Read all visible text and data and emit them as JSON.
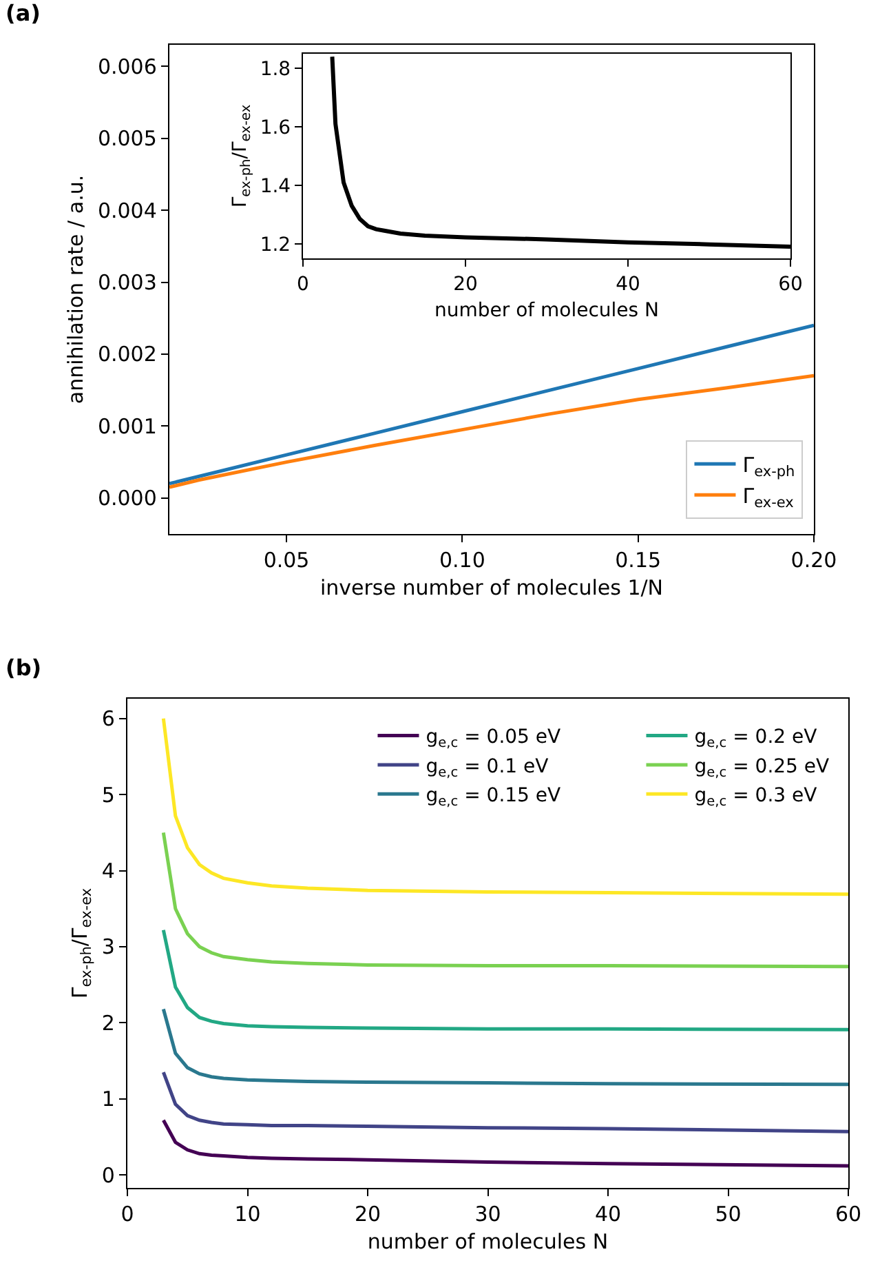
{
  "chart_data": [
    {
      "type": "line",
      "title": "(a)",
      "xlabel": "inverse number of molecules 1/N",
      "ylabel": "annihilation rate / a.u.",
      "x": [
        0.0167,
        0.025,
        0.05,
        0.075,
        0.1,
        0.125,
        0.15,
        0.175,
        0.2
      ],
      "series": [
        {
          "name": "Γ$_{ex-ph}$",
          "color": "#1f77b4",
          "values": [
            0.0002,
            0.0003,
            0.0006,
            0.0009,
            0.0012,
            0.0015,
            0.0018,
            0.0021,
            0.0024
          ]
        },
        {
          "name": "Γ$_{ex-ex}$",
          "color": "#ff7f0e",
          "values": [
            0.00015,
            0.00025,
            0.0005,
            0.00073,
            0.00095,
            0.00117,
            0.00137,
            0.00153,
            0.0017
          ]
        }
      ],
      "xlim": [
        0.0167,
        0.2
      ],
      "ylim": [
        -0.0005,
        0.0063
      ],
      "xticks": [
        0.05,
        {
          "value": 0.1,
          "label": "0.10"
        },
        0.15,
        {
          "value": 0.2,
          "label": "0.20"
        }
      ],
      "yticks": [
        {
          "value": 0,
          "label": "0.000"
        },
        0.001,
        0.002,
        0.003,
        0.004,
        0.005,
        0.006
      ],
      "legend": "bottom right"
    },
    {
      "type": "line",
      "xlabel": "number of molecules N",
      "ylabel": "Γ$_{ex-ph}$/Γ$_{ex-ex}$",
      "x": [
        3.6,
        4,
        5,
        6,
        7,
        8,
        9,
        10,
        12,
        15,
        20,
        30,
        40,
        50,
        60
      ],
      "series": [
        {
          "color": "#000000",
          "values": [
            1.84,
            1.61,
            1.41,
            1.33,
            1.285,
            1.26,
            1.25,
            1.245,
            1.235,
            1.228,
            1.222,
            1.215,
            1.205,
            1.198,
            1.19
          ]
        }
      ],
      "xlim": [
        0,
        60
      ],
      "ylim": [
        1.15,
        1.85
      ],
      "xticks": [
        0,
        20,
        40,
        60
      ],
      "yticks": [
        1.2,
        1.4,
        1.6,
        1.8
      ],
      "legend": false
    },
    {
      "type": "line",
      "title": "(b)",
      "xlabel": "number of molecules N",
      "ylabel": "Γ$_{ex-ph}$/Γ$_{ex-ex}$",
      "x": [
        3,
        4,
        5,
        6,
        7,
        8,
        10,
        12,
        15,
        20,
        30,
        40,
        60
      ],
      "series": [
        {
          "name": "g$_{e,c}$ = 0.05 eV",
          "color": "#440154",
          "values": [
            0.72,
            0.43,
            0.33,
            0.28,
            0.26,
            0.25,
            0.23,
            0.22,
            0.21,
            0.2,
            0.17,
            0.15,
            0.12
          ]
        },
        {
          "name": "g$_{e,c}$ = 0.1 eV",
          "color": "#414487",
          "values": [
            1.35,
            0.93,
            0.78,
            0.72,
            0.69,
            0.67,
            0.66,
            0.65,
            0.65,
            0.64,
            0.62,
            0.61,
            0.57
          ]
        },
        {
          "name": "g$_{e,c}$ = 0.15 eV",
          "color": "#2a788e",
          "values": [
            2.18,
            1.6,
            1.41,
            1.33,
            1.29,
            1.27,
            1.25,
            1.24,
            1.23,
            1.22,
            1.21,
            1.2,
            1.19
          ]
        },
        {
          "name": "g$_{e,c}$ = 0.2 eV",
          "color": "#22a884",
          "values": [
            3.22,
            2.47,
            2.2,
            2.07,
            2.02,
            1.99,
            1.96,
            1.95,
            1.94,
            1.93,
            1.92,
            1.92,
            1.91
          ]
        },
        {
          "name": "g$_{e,c}$ = 0.25 eV",
          "color": "#7ad151",
          "values": [
            4.5,
            3.5,
            3.17,
            3.0,
            2.92,
            2.87,
            2.83,
            2.8,
            2.78,
            2.76,
            2.75,
            2.75,
            2.74
          ]
        },
        {
          "name": "g$_{e,c}$ = 0.3 eV",
          "color": "#fde725",
          "values": [
            6.0,
            4.72,
            4.3,
            4.08,
            3.97,
            3.9,
            3.84,
            3.8,
            3.77,
            3.74,
            3.72,
            3.71,
            3.69
          ]
        }
      ],
      "xlim": [
        0,
        60
      ],
      "ylim": [
        -0.17,
        6.26
      ],
      "xticks": [
        0,
        10,
        20,
        30,
        40,
        50,
        60
      ],
      "yticks": [
        0,
        1,
        2,
        3,
        4,
        5,
        6
      ],
      "legend": "top right"
    }
  ]
}
